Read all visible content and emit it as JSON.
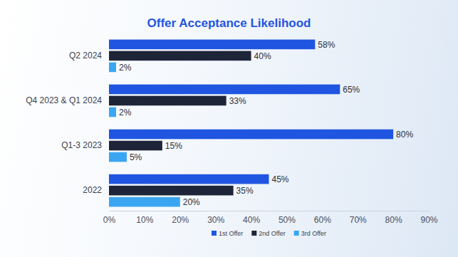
{
  "chart_data": {
    "type": "bar",
    "orientation": "horizontal",
    "title": "Offer Acceptance Likelihood",
    "categories": [
      "Q2 2024",
      "Q4 2023 & Q1 2024",
      "Q1-3 2023",
      "2022"
    ],
    "series": [
      {
        "name": "1st Offer",
        "color": "#1f55e0",
        "values": [
          58,
          65,
          80,
          45
        ],
        "value_labels": [
          "58%",
          "65%",
          "80%",
          "45%"
        ]
      },
      {
        "name": "2nd Offer",
        "color": "#1e2538",
        "values": [
          40,
          33,
          15,
          35
        ],
        "value_labels": [
          "40%",
          "33%",
          "15%",
          "35%"
        ]
      },
      {
        "name": "3rd Offer",
        "color": "#3aa6f2",
        "values": [
          2,
          2,
          5,
          20
        ],
        "value_labels": [
          "2%",
          "2%",
          "5%",
          "20%"
        ]
      }
    ],
    "xlim": [
      0,
      90
    ],
    "xticks": [
      {
        "value": 0,
        "label": "0%"
      },
      {
        "value": 10,
        "label": "10%"
      },
      {
        "value": 20,
        "label": "20%"
      },
      {
        "value": 30,
        "label": "30%"
      },
      {
        "value": 40,
        "label": "40%"
      },
      {
        "value": 50,
        "label": "50%"
      },
      {
        "value": 60,
        "label": "60%"
      },
      {
        "value": 70,
        "label": "70%"
      },
      {
        "value": 80,
        "label": "80%"
      },
      {
        "value": 90,
        "label": "90%"
      }
    ],
    "grid": false,
    "data_labels": true,
    "legend": "bottom"
  }
}
